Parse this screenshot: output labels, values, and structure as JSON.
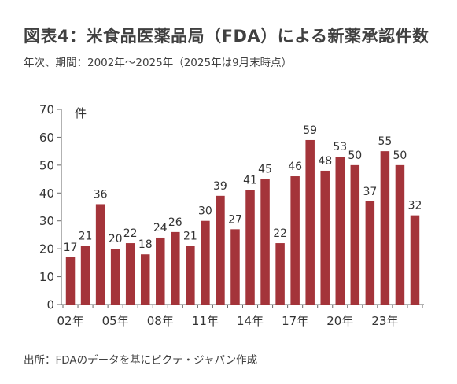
{
  "title": "図表4：米食品医薬品局（FDA）による新薬承認件数",
  "subtitle": "年次、期間：2002年～2025年（2025年は9月末時点）",
  "source": "出所：FDAのデータを基にピクテ・ジャパン作成",
  "colors": {
    "bar": "#A4343A",
    "axis": "#666666"
  },
  "chart_data": {
    "type": "bar",
    "unit_label": "件",
    "categories": [
      "2002",
      "2003",
      "2004",
      "2005",
      "2006",
      "2007",
      "2008",
      "2009",
      "2010",
      "2011",
      "2012",
      "2013",
      "2014",
      "2015",
      "2016",
      "2017",
      "2018",
      "2019",
      "2020",
      "2021",
      "2022",
      "2023",
      "2024",
      "2025"
    ],
    "values": [
      17,
      21,
      36,
      20,
      22,
      18,
      24,
      26,
      21,
      30,
      39,
      27,
      41,
      45,
      22,
      46,
      59,
      48,
      53,
      50,
      37,
      55,
      50,
      32
    ],
    "x_tick_labels": [
      {
        "index": 0,
        "label": "02年"
      },
      {
        "index": 3,
        "label": "05年"
      },
      {
        "index": 6,
        "label": "08年"
      },
      {
        "index": 9,
        "label": "11年"
      },
      {
        "index": 12,
        "label": "14年"
      },
      {
        "index": 15,
        "label": "17年"
      },
      {
        "index": 18,
        "label": "20年"
      },
      {
        "index": 21,
        "label": "23年"
      }
    ],
    "y_ticks": [
      0,
      10,
      20,
      30,
      40,
      50,
      60,
      70
    ],
    "ylim": [
      0,
      70
    ],
    "grid": false,
    "legend": "none"
  }
}
